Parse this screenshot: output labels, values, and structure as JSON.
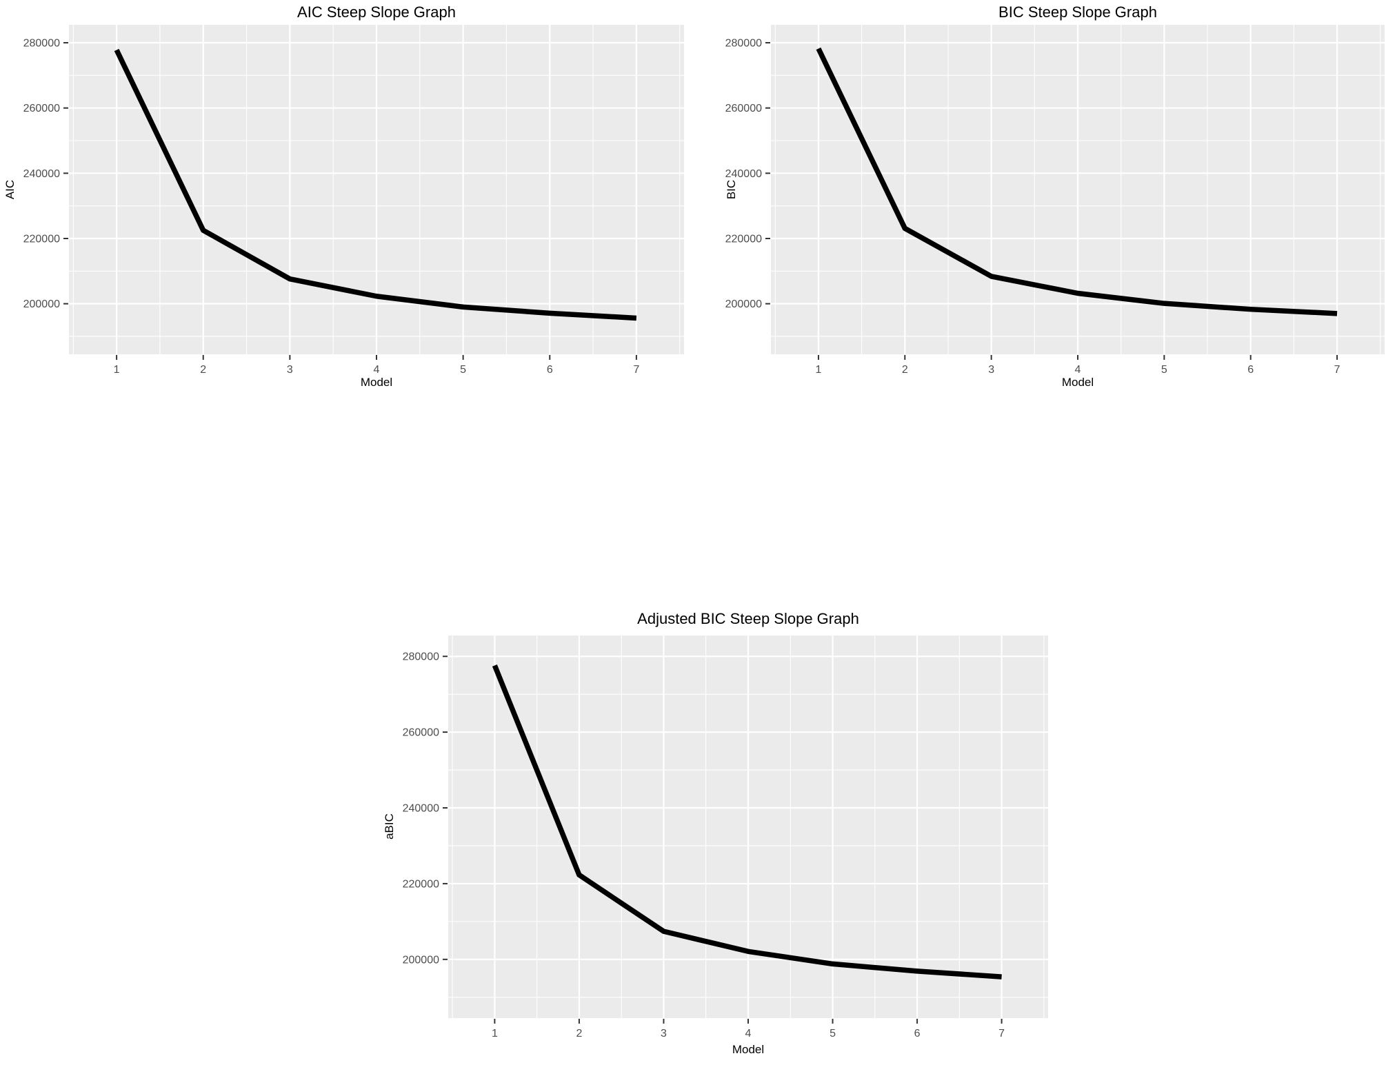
{
  "page": {
    "background_color": "#FFFFFF",
    "panel_color": "#EBEBEB",
    "gridline_color": "#FFFFFF",
    "line_color": "#000000",
    "tick_mark_color": "#333333",
    "tick_label_color": "#4D4D4D",
    "text_color": "#000000"
  },
  "chart_data": [
    {
      "id": "aic",
      "type": "line",
      "title": "AIC Steep Slope Graph",
      "xlabel": "Model",
      "ylabel": "AIC",
      "x": [
        1,
        2,
        3,
        4,
        5,
        6,
        7
      ],
      "values": [
        277800,
        222500,
        207600,
        202300,
        199000,
        197100,
        195600
      ],
      "x_ticks": [
        1,
        2,
        3,
        4,
        5,
        6,
        7
      ],
      "x_tick_labels": [
        "1",
        "2",
        "3",
        "4",
        "5",
        "6",
        "7"
      ],
      "y_ticks": [
        200000,
        220000,
        240000,
        260000,
        280000
      ],
      "y_tick_labels": [
        "200000",
        "220000",
        "240000",
        "260000",
        "280000"
      ],
      "xlim": [
        0.45,
        7.55
      ],
      "ylim": [
        184500,
        285500
      ],
      "grid": true,
      "legend": "none"
    },
    {
      "id": "bic",
      "type": "line",
      "title": "BIC Steep Slope Graph",
      "xlabel": "Model",
      "ylabel": "BIC",
      "x": [
        1,
        2,
        3,
        4,
        5,
        6,
        7
      ],
      "values": [
        278200,
        223100,
        208400,
        203200,
        200100,
        198300,
        197000
      ],
      "x_ticks": [
        1,
        2,
        3,
        4,
        5,
        6,
        7
      ],
      "x_tick_labels": [
        "1",
        "2",
        "3",
        "4",
        "5",
        "6",
        "7"
      ],
      "y_ticks": [
        200000,
        220000,
        240000,
        260000,
        280000
      ],
      "y_tick_labels": [
        "200000",
        "220000",
        "240000",
        "260000",
        "280000"
      ],
      "xlim": [
        0.45,
        7.55
      ],
      "ylim": [
        184500,
        285500
      ],
      "grid": true,
      "legend": "none"
    },
    {
      "id": "abic",
      "type": "line",
      "title": "Adjusted BIC Steep Slope Graph",
      "xlabel": "Model",
      "ylabel": "aBIC",
      "x": [
        1,
        2,
        3,
        4,
        5,
        6,
        7
      ],
      "values": [
        277600,
        222300,
        207400,
        202100,
        198800,
        196900,
        195400
      ],
      "x_ticks": [
        1,
        2,
        3,
        4,
        5,
        6,
        7
      ],
      "x_tick_labels": [
        "1",
        "2",
        "3",
        "4",
        "5",
        "6",
        "7"
      ],
      "y_ticks": [
        200000,
        220000,
        240000,
        260000,
        280000
      ],
      "y_tick_labels": [
        "200000",
        "220000",
        "240000",
        "260000",
        "280000"
      ],
      "xlim": [
        0.45,
        7.55
      ],
      "ylim": [
        184500,
        285500
      ],
      "grid": true,
      "legend": "none"
    }
  ]
}
